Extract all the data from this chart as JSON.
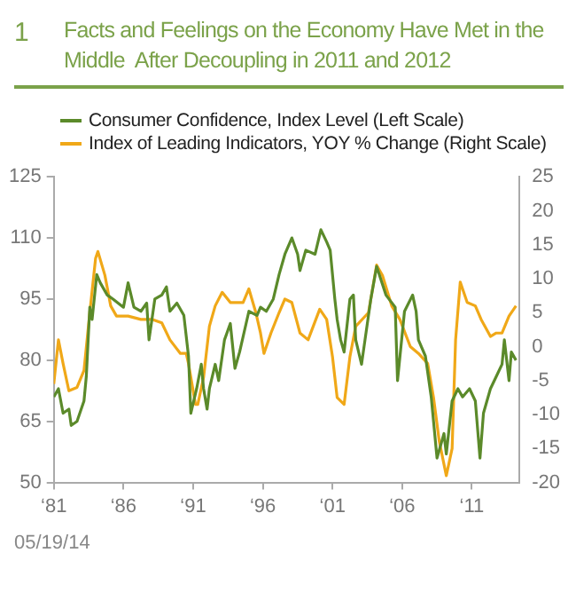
{
  "chart_data": {
    "type": "line",
    "title": "Facts and Feelings on the Economy Have Met in the Middle  After Decoupling in 2011 and 2012",
    "annotations": [
      "1",
      "05/19/14"
    ],
    "legend": "top",
    "grid": false,
    "marker": "none",
    "line_style": "solid",
    "xlim": [
      "1981-01",
      "2014-06"
    ],
    "xticks": [
      {
        "value": "1981",
        "label": "‘81"
      },
      {
        "value": "1986",
        "label": "‘86"
      },
      {
        "value": "1991",
        "label": "‘91"
      },
      {
        "value": "1996",
        "label": "‘96"
      },
      {
        "value": "2001",
        "label": "‘01"
      },
      {
        "value": "2006",
        "label": "‘06"
      },
      {
        "value": "2011",
        "label": "‘11"
      }
    ],
    "ylim": [
      50,
      125
    ],
    "yticks": [
      50,
      65,
      80,
      95,
      110,
      125
    ],
    "y2lim": [
      -20,
      25
    ],
    "y2ticks": [
      -20,
      -15,
      -10,
      -5,
      0,
      5,
      10,
      15,
      20,
      25
    ],
    "series": [
      {
        "name": "Consumer Confidence, Index Level (Left Scale)",
        "color": "#5b8a2a",
        "axis": "y",
        "x": [
          "1981-01",
          "1981-05",
          "1981-09",
          "1982-02",
          "1982-04",
          "1982-09",
          "1983-03",
          "1983-05",
          "1983-08",
          "1983-10",
          "1984-02",
          "1984-05",
          "1984-11",
          "1985-04",
          "1986-01",
          "1986-05",
          "1986-10",
          "1987-04",
          "1987-09",
          "1987-11",
          "1988-04",
          "1988-10",
          "1989-02",
          "1989-05",
          "1989-11",
          "1990-05",
          "1990-09",
          "1990-11",
          "1991-04",
          "1991-08",
          "1991-10",
          "1992-01",
          "1992-03",
          "1992-08",
          "1992-11",
          "1993-04",
          "1993-09",
          "1994-01",
          "1994-05",
          "1995-01",
          "1995-08",
          "1995-11",
          "1996-04",
          "1996-10",
          "1997-03",
          "1997-08",
          "1998-02",
          "1998-07",
          "1998-09",
          "1999-02",
          "1999-10",
          "2000-03",
          "2000-08",
          "2000-11",
          "2001-03",
          "2001-05",
          "2001-08",
          "2001-11",
          "2002-04",
          "2002-07",
          "2002-09",
          "2003-02",
          "2003-05",
          "2003-10",
          "2004-03",
          "2004-11",
          "2005-07",
          "2005-09",
          "2006-03",
          "2006-10",
          "2007-01",
          "2007-03",
          "2007-09",
          "2008-02",
          "2008-07",
          "2009-01",
          "2009-03",
          "2009-08",
          "2010-01",
          "2010-05",
          "2010-11",
          "2011-04",
          "2011-08",
          "2011-11",
          "2012-05",
          "2012-10",
          "2013-03",
          "2013-05",
          "2013-09",
          "2013-11",
          "2014-03"
        ],
        "values": [
          71,
          73,
          67,
          68,
          64,
          65,
          70,
          76,
          93,
          90,
          101,
          99,
          96,
          95,
          93,
          99,
          93,
          92,
          94,
          85,
          95,
          96,
          98,
          92,
          94,
          91,
          81,
          67,
          73,
          79,
          73,
          68,
          73,
          79,
          75,
          85,
          89,
          78,
          82,
          92,
          91,
          93,
          92,
          95,
          101,
          106,
          110,
          106,
          102,
          107,
          106,
          112,
          109,
          107,
          95,
          90,
          85,
          82,
          95,
          96,
          85,
          79,
          85,
          95,
          103,
          96,
          93,
          75,
          92,
          96,
          92,
          85,
          81,
          71,
          56,
          62,
          57,
          70,
          73,
          71,
          73,
          70,
          56,
          67,
          73,
          76,
          79,
          85,
          75,
          82,
          80
        ]
      },
      {
        "name": "Index of Leading Indicators, YOY % Change (Right Scale)",
        "color": "#f0a818",
        "axis": "y2",
        "x": [
          "1981-01",
          "1981-05",
          "1981-09",
          "1982-02",
          "1982-09",
          "1983-03",
          "1983-08",
          "1984-01",
          "1984-03",
          "1984-09",
          "1985-02",
          "1985-07",
          "1986-05",
          "1987-04",
          "1988-02",
          "1988-10",
          "1989-05",
          "1990-02",
          "1990-07",
          "1990-09",
          "1991-03",
          "1991-05",
          "1991-10",
          "1992-03",
          "1992-08",
          "1993-02",
          "1993-09",
          "1994-08",
          "1995-01",
          "1995-07",
          "1995-11",
          "1996-02",
          "1996-08",
          "1997-03",
          "1997-08",
          "1998-02",
          "1998-09",
          "1999-04",
          "2000-02",
          "2000-08",
          "2001-01",
          "2001-05",
          "2001-11",
          "2002-04",
          "2002-09",
          "2003-08",
          "2004-03",
          "2004-08",
          "2005-04",
          "2005-11",
          "2006-08",
          "2007-03",
          "2007-11",
          "2008-04",
          "2008-09",
          "2009-03",
          "2009-08",
          "2009-11",
          "2010-03",
          "2010-09",
          "2011-04",
          "2011-09",
          "2012-05",
          "2012-10",
          "2013-03",
          "2013-09",
          "2014-03"
        ],
        "values": [
          -5.5,
          1,
          -2.5,
          -6.5,
          -6,
          -3.5,
          5,
          13,
          14,
          10.5,
          6,
          4.5,
          4.5,
          4,
          4,
          3.5,
          1,
          -1,
          -1,
          -2.5,
          -8.5,
          -8.5,
          -4.5,
          3,
          6,
          8,
          6.5,
          6.5,
          8.5,
          5,
          2,
          -1,
          2,
          5,
          7,
          6.5,
          2,
          1,
          5.5,
          4,
          -1.5,
          -7.5,
          -8.5,
          -1.5,
          3,
          5,
          12,
          10.5,
          6,
          4,
          0,
          -1,
          -2.5,
          -7.5,
          -14,
          -19,
          -15,
          1,
          9.5,
          6.5,
          6,
          4,
          1.5,
          2,
          2,
          4.5,
          6
        ]
      }
    ]
  }
}
